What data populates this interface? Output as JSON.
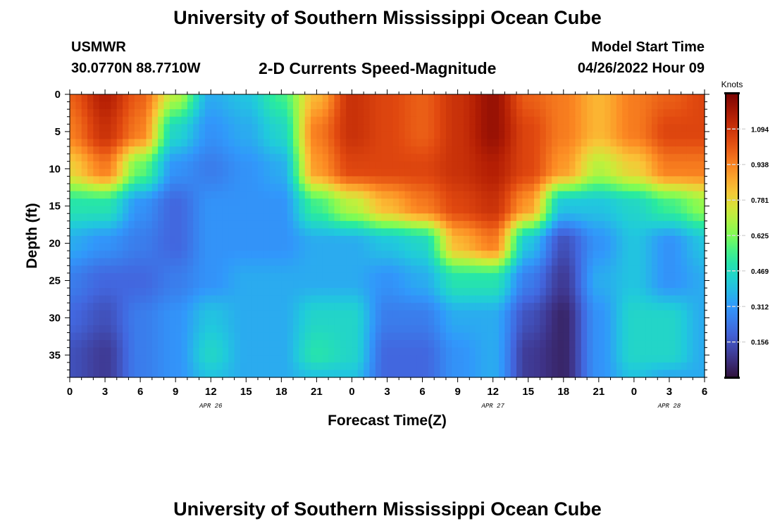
{
  "header": {
    "title": "University of Southern Mississippi Ocean Cube",
    "station": "USMWR",
    "coords": "30.0770N  88.7710W",
    "subtitle": "2-D Currents Speed-Magnitude",
    "model_start_label": "Model Start Time",
    "model_start_value": "04/26/2022 Hour 09"
  },
  "footer": {
    "title_repeat": "University of Southern Mississippi Ocean Cube"
  },
  "chart_data": {
    "type": "heatmap",
    "title": "2-D Currents Speed-Magnitude",
    "xlabel": "Forecast Time(Z)",
    "ylabel": "Depth (ft)",
    "x_tick_labels": [
      "0",
      "3",
      "6",
      "9",
      "12",
      "15",
      "18",
      "21",
      "0",
      "3",
      "6",
      "9",
      "12",
      "15",
      "18",
      "21",
      "0",
      "3",
      "6"
    ],
    "x_hours": [
      0,
      3,
      6,
      9,
      12,
      15,
      18,
      21,
      24,
      27,
      30,
      33,
      36,
      39,
      42,
      45,
      48,
      51,
      54
    ],
    "xlim": [
      0,
      54
    ],
    "date_labels": [
      {
        "label": "APR 26",
        "hour": 12
      },
      {
        "label": "APR 27",
        "hour": 36
      },
      {
        "label": "APR 28",
        "hour": 51
      }
    ],
    "y_ticks": [
      0,
      5,
      10,
      15,
      20,
      25,
      30,
      35
    ],
    "ylim": [
      0,
      38
    ],
    "colorbar": {
      "title": "Knots",
      "ticks": [
        0.156,
        0.312,
        0.469,
        0.625,
        0.781,
        0.938,
        1.094
      ],
      "tick_labels": [
        "0.156",
        "0.312",
        "0.469",
        "0.625",
        "0.781",
        "0.938",
        "1.094"
      ],
      "range": [
        0.0,
        1.25
      ]
    },
    "grid": false,
    "values_approx": {
      "depths_ft": [
        0,
        5,
        10,
        15,
        20,
        25,
        30,
        35,
        38
      ],
      "hours": [
        0,
        3,
        6,
        9,
        12,
        15,
        18,
        21,
        24,
        27,
        30,
        33,
        36,
        39,
        42,
        45,
        48,
        51,
        54
      ],
      "speed_knots": [
        [
          1.0,
          1.15,
          1.0,
          0.7,
          0.35,
          0.4,
          0.55,
          0.85,
          1.1,
          1.05,
          1.0,
          1.1,
          1.2,
          1.0,
          0.95,
          0.85,
          0.95,
          1.0,
          1.05
        ],
        [
          0.95,
          1.1,
          0.95,
          0.45,
          0.3,
          0.35,
          0.45,
          0.95,
          1.1,
          1.05,
          1.0,
          1.1,
          1.2,
          1.05,
          0.95,
          0.85,
          0.95,
          1.05,
          1.05
        ],
        [
          0.8,
          0.95,
          0.6,
          0.3,
          0.25,
          0.3,
          0.35,
          0.9,
          1.05,
          1.05,
          1.05,
          1.1,
          1.15,
          1.05,
          0.9,
          0.7,
          0.8,
          0.95,
          0.95
        ],
        [
          0.5,
          0.5,
          0.3,
          0.2,
          0.3,
          0.3,
          0.3,
          0.55,
          0.7,
          0.85,
          0.95,
          1.05,
          1.1,
          0.9,
          0.4,
          0.4,
          0.45,
          0.55,
          0.65
        ],
        [
          0.35,
          0.3,
          0.25,
          0.2,
          0.3,
          0.3,
          0.3,
          0.35,
          0.35,
          0.4,
          0.45,
          0.85,
          0.95,
          0.4,
          0.15,
          0.3,
          0.4,
          0.3,
          0.4
        ],
        [
          0.25,
          0.2,
          0.2,
          0.25,
          0.3,
          0.35,
          0.35,
          0.35,
          0.35,
          0.3,
          0.35,
          0.5,
          0.5,
          0.25,
          0.1,
          0.35,
          0.4,
          0.3,
          0.35
        ],
        [
          0.2,
          0.15,
          0.25,
          0.3,
          0.4,
          0.35,
          0.35,
          0.45,
          0.45,
          0.25,
          0.25,
          0.35,
          0.35,
          0.15,
          0.05,
          0.3,
          0.45,
          0.45,
          0.35
        ],
        [
          0.15,
          0.1,
          0.25,
          0.3,
          0.45,
          0.35,
          0.35,
          0.5,
          0.45,
          0.2,
          0.2,
          0.3,
          0.35,
          0.1,
          0.05,
          0.3,
          0.45,
          0.45,
          0.35
        ],
        [
          0.15,
          0.1,
          0.25,
          0.3,
          0.4,
          0.35,
          0.35,
          0.4,
          0.4,
          0.2,
          0.2,
          0.3,
          0.35,
          0.1,
          0.05,
          0.3,
          0.4,
          0.35,
          0.35
        ]
      ]
    }
  }
}
